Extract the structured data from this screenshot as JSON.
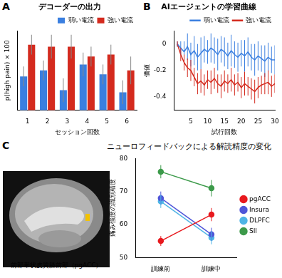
{
  "chart_data": [
    {
      "panel": "A",
      "type": "bar",
      "title": "デコーダーの出力",
      "x_label": "セッション回数",
      "y_label": "p(high pain) × 100",
      "categories": [
        "1",
        "2",
        "3",
        "4",
        "5",
        "6"
      ],
      "series": [
        {
          "name": "弱い電流",
          "color": "#3a7fe0",
          "values": [
            47,
            50,
            40,
            53,
            48,
            39
          ],
          "errors": [
            5,
            5,
            6,
            6,
            5,
            6
          ]
        },
        {
          "name": "強い電流",
          "color": "#d42a1e",
          "values": [
            63,
            62,
            62,
            57,
            58,
            50
          ],
          "errors": [
            5,
            6,
            6,
            5,
            5,
            7
          ]
        }
      ],
      "ylim": [
        30,
        70
      ],
      "tick_labels": "x",
      "grid": false,
      "legend": "top right"
    },
    {
      "panel": "B",
      "type": "line",
      "title": "AIエージェントの学習曲線",
      "x_label": "試行回数",
      "y_label": "価値",
      "x": [
        1,
        2,
        3,
        4,
        5,
        6,
        7,
        8,
        9,
        10,
        11,
        12,
        13,
        14,
        15,
        16,
        17,
        18,
        19,
        20,
        21,
        22,
        23,
        24,
        25,
        26,
        27,
        28,
        29,
        30
      ],
      "series": [
        {
          "name": "弱い電流",
          "color": "#3a7fe0",
          "values": [
            0,
            -0.03,
            -0.06,
            -0.02,
            -0.08,
            -0.05,
            -0.1,
            -0.07,
            -0.04,
            -0.06,
            -0.03,
            -0.05,
            -0.08,
            -0.04,
            -0.06,
            -0.09,
            -0.05,
            -0.08,
            -0.1,
            -0.07,
            -0.09,
            -0.06,
            -0.1,
            -0.12,
            -0.09,
            -0.11,
            -0.13,
            -0.1,
            -0.12,
            -0.12
          ],
          "errors": [
            0.02,
            0.05,
            0.08,
            0.1,
            0.09,
            0.11,
            0.1,
            0.12,
            0.1,
            0.09,
            0.11,
            0.1,
            0.12,
            0.1,
            0.11,
            0.1,
            0.12,
            0.1,
            0.11,
            0.1,
            0.12,
            0.11,
            0.1,
            0.12,
            0.11,
            0.1,
            0.12,
            0.11,
            0.1,
            0.11
          ]
        },
        {
          "name": "強い電流",
          "color": "#d42a1e",
          "values": [
            0,
            -0.08,
            -0.14,
            -0.18,
            -0.2,
            -0.25,
            -0.3,
            -0.28,
            -0.31,
            -0.27,
            -0.29,
            -0.26,
            -0.3,
            -0.32,
            -0.28,
            -0.3,
            -0.27,
            -0.31,
            -0.29,
            -0.33,
            -0.3,
            -0.32,
            -0.34,
            -0.36,
            -0.33,
            -0.31,
            -0.3,
            -0.29,
            -0.32,
            -0.3
          ],
          "errors": [
            0.02,
            0.05,
            0.06,
            0.07,
            0.08,
            0.07,
            0.08,
            0.09,
            0.08,
            0.07,
            0.09,
            0.08,
            0.07,
            0.09,
            0.08,
            0.07,
            0.09,
            0.08,
            0.07,
            0.08,
            0.09,
            0.07,
            0.08,
            0.09,
            0.08,
            0.07,
            0.08,
            0.09,
            0.08,
            0.07
          ]
        }
      ],
      "xlim": [
        0,
        30
      ],
      "xticks": [
        5,
        10,
        15,
        20,
        25,
        30
      ],
      "ylim": [
        -0.5,
        0.1
      ],
      "yticks": [
        -0.4,
        -0.2,
        0
      ],
      "grid": false,
      "legend": "top right"
    },
    {
      "panel": "C",
      "type": "line",
      "panel_title": "ニューロフィードバックによる解読精度の変化",
      "image_caption": "前部帯状皮質膝前部（pgACC）",
      "y_label": "痛み強度の識別精度",
      "categories": [
        "訓練前",
        "訓練中"
      ],
      "series": [
        {
          "name": "pgACC",
          "color": "#e8191e",
          "values": [
            55,
            63
          ],
          "errors": [
            1.5,
            2
          ]
        },
        {
          "name": "Insura",
          "color": "#4f56d8",
          "values": [
            68,
            57
          ],
          "errors": [
            2,
            2
          ]
        },
        {
          "name": "DLPFC",
          "color": "#4fb5e6",
          "values": [
            67,
            56
          ],
          "errors": [
            2,
            2
          ]
        },
        {
          "name": "SII",
          "color": "#3c9a4a",
          "values": [
            76,
            71
          ],
          "errors": [
            2,
            2.5
          ]
        }
      ],
      "ylim": [
        50,
        80
      ],
      "yticks": [
        50,
        60,
        70,
        80
      ],
      "grid": false,
      "legend": "right",
      "marker": "circle"
    }
  ]
}
